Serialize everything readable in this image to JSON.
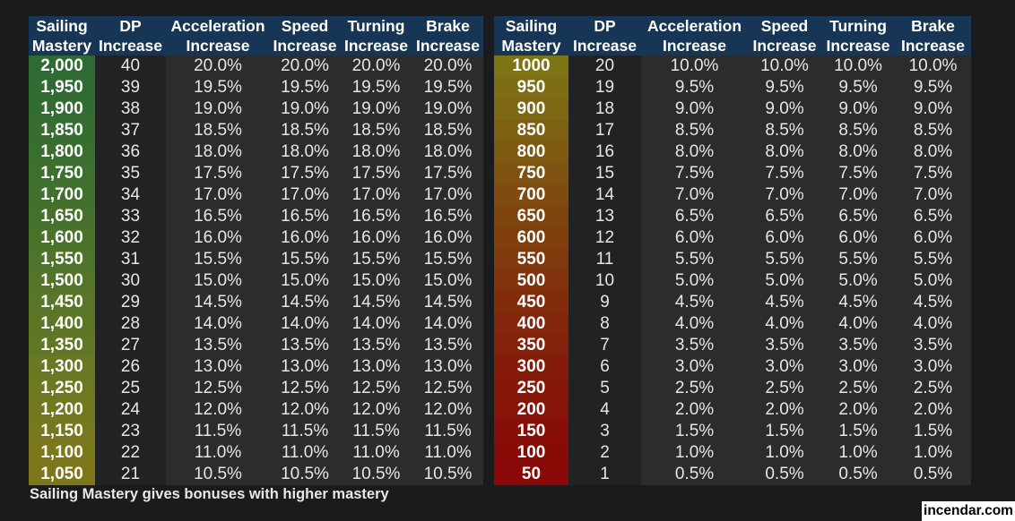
{
  "tables": [
    {
      "headers": [
        [
          "Sailing",
          "Mastery"
        ],
        [
          "DP",
          "Increase"
        ],
        [
          "Acceleration",
          "Increase"
        ],
        [
          "Speed",
          "Increase"
        ],
        [
          "Turning",
          "Increase"
        ],
        [
          "Brake",
          "Increase"
        ]
      ],
      "rows": [
        {
          "mastery": "2,000",
          "dp": "40",
          "accel": "20.0%",
          "speed": "20.0%",
          "turning": "20.0%",
          "brake": "20.0%",
          "color": "#2e6a33"
        },
        {
          "mastery": "1,950",
          "dp": "39",
          "accel": "19.5%",
          "speed": "19.5%",
          "turning": "19.5%",
          "brake": "19.5%",
          "color": "#306b32"
        },
        {
          "mastery": "1,900",
          "dp": "38",
          "accel": "19.0%",
          "speed": "19.0%",
          "turning": "19.0%",
          "brake": "19.0%",
          "color": "#336c31"
        },
        {
          "mastery": "1,850",
          "dp": "37",
          "accel": "18.5%",
          "speed": "18.5%",
          "turning": "18.5%",
          "brake": "18.5%",
          "color": "#366d30"
        },
        {
          "mastery": "1,800",
          "dp": "36",
          "accel": "18.0%",
          "speed": "18.0%",
          "turning": "18.0%",
          "brake": "18.0%",
          "color": "#3a6e2f"
        },
        {
          "mastery": "1,750",
          "dp": "35",
          "accel": "17.5%",
          "speed": "17.5%",
          "turning": "17.5%",
          "brake": "17.5%",
          "color": "#3d6f2e"
        },
        {
          "mastery": "1,700",
          "dp": "34",
          "accel": "17.0%",
          "speed": "17.0%",
          "turning": "17.0%",
          "brake": "17.0%",
          "color": "#41702d"
        },
        {
          "mastery": "1,650",
          "dp": "33",
          "accel": "16.5%",
          "speed": "16.5%",
          "turning": "16.5%",
          "brake": "16.5%",
          "color": "#45712c"
        },
        {
          "mastery": "1,600",
          "dp": "32",
          "accel": "16.0%",
          "speed": "16.0%",
          "turning": "16.0%",
          "brake": "16.0%",
          "color": "#49722b"
        },
        {
          "mastery": "1,550",
          "dp": "31",
          "accel": "15.5%",
          "speed": "15.5%",
          "turning": "15.5%",
          "brake": "15.5%",
          "color": "#4e732a"
        },
        {
          "mastery": "1,500",
          "dp": "30",
          "accel": "15.0%",
          "speed": "15.0%",
          "turning": "15.0%",
          "brake": "15.0%",
          "color": "#537429"
        },
        {
          "mastery": "1,450",
          "dp": "29",
          "accel": "14.5%",
          "speed": "14.5%",
          "turning": "14.5%",
          "brake": "14.5%",
          "color": "#587528"
        },
        {
          "mastery": "1,400",
          "dp": "28",
          "accel": "14.0%",
          "speed": "14.0%",
          "turning": "14.0%",
          "brake": "14.0%",
          "color": "#5d7626"
        },
        {
          "mastery": "1,350",
          "dp": "27",
          "accel": "13.5%",
          "speed": "13.5%",
          "turning": "13.5%",
          "brake": "13.5%",
          "color": "#627725"
        },
        {
          "mastery": "1,300",
          "dp": "26",
          "accel": "13.0%",
          "speed": "13.0%",
          "turning": "13.0%",
          "brake": "13.0%",
          "color": "#687823"
        },
        {
          "mastery": "1,250",
          "dp": "25",
          "accel": "12.5%",
          "speed": "12.5%",
          "turning": "12.5%",
          "brake": "12.5%",
          "color": "#6d7821"
        },
        {
          "mastery": "1,200",
          "dp": "24",
          "accel": "12.0%",
          "speed": "12.0%",
          "turning": "12.0%",
          "brake": "12.0%",
          "color": "#72781f"
        },
        {
          "mastery": "1,150",
          "dp": "23",
          "accel": "11.5%",
          "speed": "11.5%",
          "turning": "11.5%",
          "brake": "11.5%",
          "color": "#77781d"
        },
        {
          "mastery": "1,100",
          "dp": "22",
          "accel": "11.0%",
          "speed": "11.0%",
          "turning": "11.0%",
          "brake": "11.0%",
          "color": "#7b781b"
        },
        {
          "mastery": "1,050",
          "dp": "21",
          "accel": "10.5%",
          "speed": "10.5%",
          "turning": "10.5%",
          "brake": "10.5%",
          "color": "#7e7719"
        }
      ]
    },
    {
      "headers": [
        [
          "Sailing",
          "Mastery"
        ],
        [
          "DP",
          "Increase"
        ],
        [
          "Acceleration",
          "Increase"
        ],
        [
          "Speed",
          "Increase"
        ],
        [
          "Turning",
          "Increase"
        ],
        [
          "Brake",
          "Increase"
        ]
      ],
      "rows": [
        {
          "mastery": "1000",
          "dp": "20",
          "accel": "10.0%",
          "speed": "10.0%",
          "turning": "10.0%",
          "brake": "10.0%",
          "color": "#7d7514"
        },
        {
          "mastery": "950",
          "dp": "19",
          "accel": "9.5%",
          "speed": "9.5%",
          "turning": "9.5%",
          "brake": "9.5%",
          "color": "#7d6e13"
        },
        {
          "mastery": "900",
          "dp": "18",
          "accel": "9.0%",
          "speed": "9.0%",
          "turning": "9.0%",
          "brake": "9.0%",
          "color": "#7d6712"
        },
        {
          "mastery": "850",
          "dp": "17",
          "accel": "8.5%",
          "speed": "8.5%",
          "turning": "8.5%",
          "brake": "8.5%",
          "color": "#7d6011"
        },
        {
          "mastery": "800",
          "dp": "16",
          "accel": "8.0%",
          "speed": "8.0%",
          "turning": "8.0%",
          "brake": "8.0%",
          "color": "#7e5910"
        },
        {
          "mastery": "750",
          "dp": "15",
          "accel": "7.5%",
          "speed": "7.5%",
          "turning": "7.5%",
          "brake": "7.5%",
          "color": "#7e5210"
        },
        {
          "mastery": "700",
          "dp": "14",
          "accel": "7.0%",
          "speed": "7.0%",
          "turning": "7.0%",
          "brake": "7.0%",
          "color": "#7f4b0f"
        },
        {
          "mastery": "650",
          "dp": "13",
          "accel": "6.5%",
          "speed": "6.5%",
          "turning": "6.5%",
          "brake": "6.5%",
          "color": "#7f440e"
        },
        {
          "mastery": "600",
          "dp": "12",
          "accel": "6.0%",
          "speed": "6.0%",
          "turning": "6.0%",
          "brake": "6.0%",
          "color": "#803e0d"
        },
        {
          "mastery": "550",
          "dp": "11",
          "accel": "5.5%",
          "speed": "5.5%",
          "turning": "5.5%",
          "brake": "5.5%",
          "color": "#80380d"
        },
        {
          "mastery": "500",
          "dp": "10",
          "accel": "5.0%",
          "speed": "5.0%",
          "turning": "5.0%",
          "brake": "5.0%",
          "color": "#81320c"
        },
        {
          "mastery": "450",
          "dp": "9",
          "accel": "4.5%",
          "speed": "4.5%",
          "turning": "4.5%",
          "brake": "4.5%",
          "color": "#822c0b"
        },
        {
          "mastery": "400",
          "dp": "8",
          "accel": "4.0%",
          "speed": "4.0%",
          "turning": "4.0%",
          "brake": "4.0%",
          "color": "#83260b"
        },
        {
          "mastery": "350",
          "dp": "7",
          "accel": "3.5%",
          "speed": "3.5%",
          "turning": "3.5%",
          "brake": "3.5%",
          "color": "#84210a"
        },
        {
          "mastery": "300",
          "dp": "6",
          "accel": "3.0%",
          "speed": "3.0%",
          "turning": "3.0%",
          "brake": "3.0%",
          "color": "#851c0a"
        },
        {
          "mastery": "250",
          "dp": "5",
          "accel": "2.5%",
          "speed": "2.5%",
          "turning": "2.5%",
          "brake": "2.5%",
          "color": "#861709"
        },
        {
          "mastery": "200",
          "dp": "4",
          "accel": "2.0%",
          "speed": "2.0%",
          "turning": "2.0%",
          "brake": "2.0%",
          "color": "#871309"
        },
        {
          "mastery": "150",
          "dp": "3",
          "accel": "1.5%",
          "speed": "1.5%",
          "turning": "1.5%",
          "brake": "1.5%",
          "color": "#880f09"
        },
        {
          "mastery": "100",
          "dp": "2",
          "accel": "1.0%",
          "speed": "1.0%",
          "turning": "1.0%",
          "brake": "1.0%",
          "color": "#890b08"
        },
        {
          "mastery": "50",
          "dp": "1",
          "accel": "0.5%",
          "speed": "0.5%",
          "turning": "0.5%",
          "brake": "0.5%",
          "color": "#8a0808"
        }
      ]
    }
  ],
  "caption": "Sailing Mastery gives bonuses with higher mastery",
  "watermark": "incendar.com",
  "colors": {
    "header_bg": "#173656",
    "body_bg": "#2b2c2e",
    "page_bg": "#1a1b1d"
  }
}
